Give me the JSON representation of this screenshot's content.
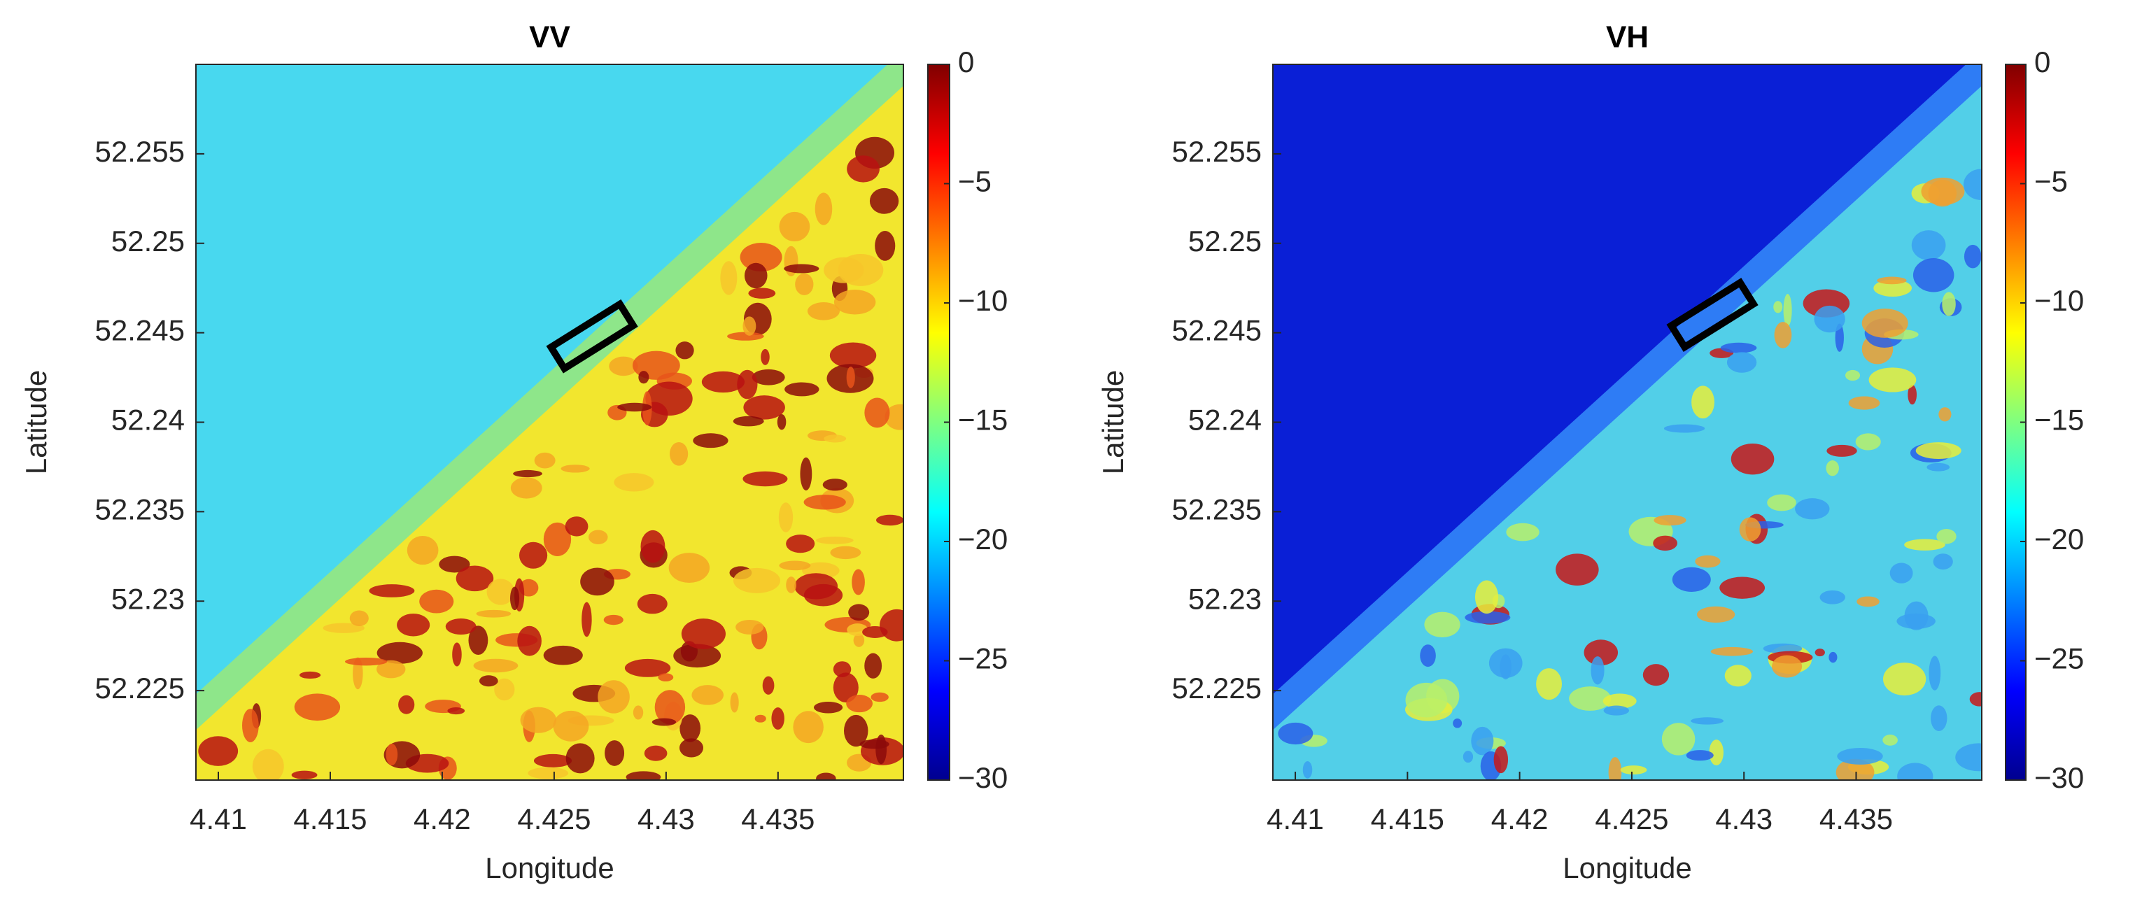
{
  "chart_data": [
    {
      "type": "heatmap",
      "title": "VV",
      "xlabel": "Longitude",
      "ylabel": "Latitude",
      "xlim": [
        4.409,
        4.4406
      ],
      "xticks": [
        4.41,
        4.415,
        4.42,
        4.425,
        4.43,
        4.435
      ],
      "ylim": [
        52.22,
        52.26
      ],
      "yticks": [
        52.225,
        52.23,
        52.235,
        52.24,
        52.245,
        52.25,
        52.255
      ],
      "colormap": "jet",
      "clim": [
        -30,
        0
      ],
      "cticks": [
        {
          "value": -30,
          "label": "−30"
        },
        {
          "value": -25,
          "label": "−25"
        },
        {
          "value": -20,
          "label": "−20"
        },
        {
          "value": -15,
          "label": "−15"
        },
        {
          "value": -10,
          "label": "−10"
        },
        {
          "value": -5,
          "label": "−5"
        },
        0
      ]
    },
    {
      "type": "heatmap",
      "title": "VH",
      "xlabel": "Longitude",
      "ylabel": "Latitude",
      "xlim": [
        4.409,
        4.4406
      ],
      "xticks": [
        4.41,
        4.415,
        4.42,
        4.425,
        4.43,
        4.435
      ],
      "ylim": [
        52.22,
        52.26
      ],
      "yticks": [
        52.225,
        52.23,
        52.235,
        52.24,
        52.245,
        52.25,
        52.255
      ],
      "colormap": "jet",
      "clim": [
        -30,
        0
      ],
      "cticks": [
        {
          "value": -30,
          "label": "−30"
        },
        {
          "value": -25,
          "label": "−25"
        },
        {
          "value": -20,
          "label": "−20"
        },
        {
          "value": -15,
          "label": "−15"
        },
        {
          "value": -10,
          "label": "−10"
        },
        {
          "value": -5,
          "label": "−5"
        },
        0
      ]
    }
  ]
}
